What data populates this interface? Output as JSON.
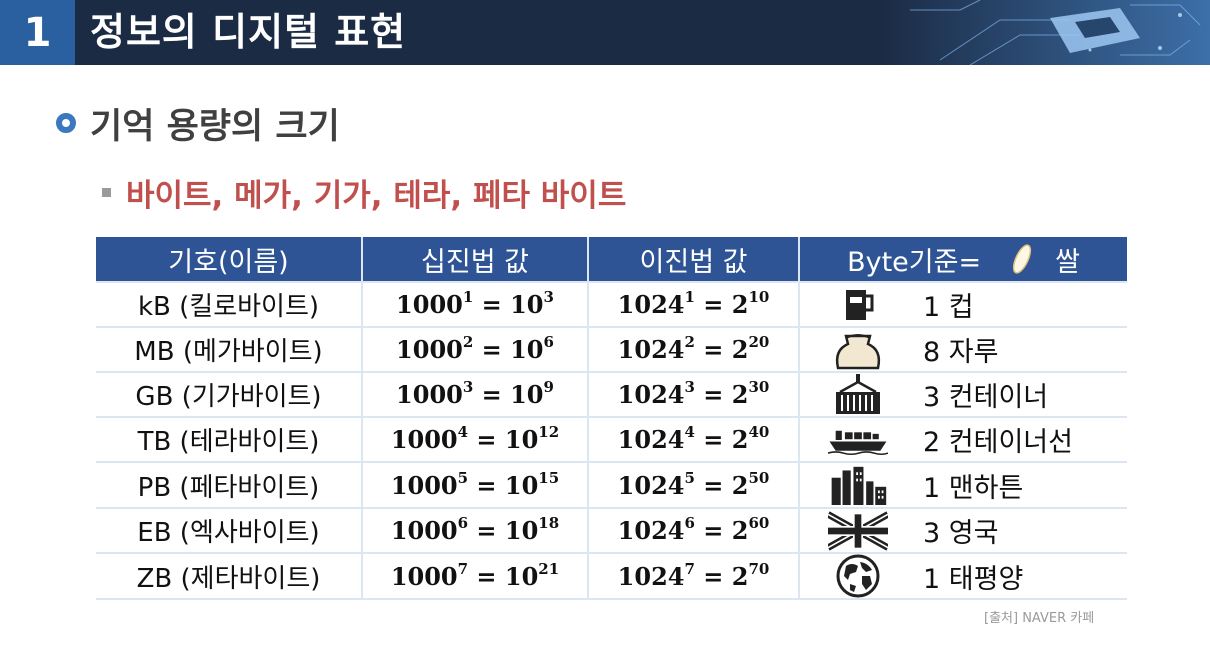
{
  "header": {
    "number": "1",
    "title": "정보의 디지털 표현"
  },
  "heading": "기억 용량의 크기",
  "subheading": "바이트, 메가, 기가, 테라, 페타 바이트",
  "table": {
    "headers": [
      "기호(이름)",
      "십진법 값",
      "이진법 값",
      "Byte기준=",
      "쌀"
    ],
    "rows": [
      {
        "name": "kB (킬로바이트)",
        "dec_base": "1000",
        "dec_exp": "1",
        "dec_res_base": "10",
        "dec_res_exp": "3",
        "bin_base": "1024",
        "bin_exp": "1",
        "bin_res_base": "2",
        "bin_res_exp": "10",
        "icon": "cup-icon",
        "example": "1 컵"
      },
      {
        "name": "MB (메가바이트)",
        "dec_base": "1000",
        "dec_exp": "2",
        "dec_res_base": "10",
        "dec_res_exp": "6",
        "bin_base": "1024",
        "bin_exp": "2",
        "bin_res_base": "2",
        "bin_res_exp": "20",
        "icon": "sack-icon",
        "example": "8 자루"
      },
      {
        "name": "GB (기가바이트)",
        "dec_base": "1000",
        "dec_exp": "3",
        "dec_res_base": "10",
        "dec_res_exp": "9",
        "bin_base": "1024",
        "bin_exp": "3",
        "bin_res_base": "2",
        "bin_res_exp": "30",
        "icon": "container-icon",
        "example": "3 컨테이너"
      },
      {
        "name": "TB (테라바이트)",
        "dec_base": "1000",
        "dec_exp": "4",
        "dec_res_base": "10",
        "dec_res_exp": "12",
        "bin_base": "1024",
        "bin_exp": "4",
        "bin_res_base": "2",
        "bin_res_exp": "40",
        "icon": "ship-icon",
        "example": "2 컨테이너선"
      },
      {
        "name": "PB (페타바이트)",
        "dec_base": "1000",
        "dec_exp": "5",
        "dec_res_base": "10",
        "dec_res_exp": "15",
        "bin_base": "1024",
        "bin_exp": "5",
        "bin_res_base": "2",
        "bin_res_exp": "50",
        "icon": "city-icon",
        "example": "1 맨하튼"
      },
      {
        "name": "EB (엑사바이트)",
        "dec_base": "1000",
        "dec_exp": "6",
        "dec_res_base": "10",
        "dec_res_exp": "18",
        "bin_base": "1024",
        "bin_exp": "6",
        "bin_res_base": "2",
        "bin_res_exp": "60",
        "icon": "uk-flag-icon",
        "example": "3 영국"
      },
      {
        "name": "ZB (제타바이트)",
        "dec_base": "1000",
        "dec_exp": "7",
        "dec_res_base": "10",
        "dec_res_exp": "21",
        "bin_base": "1024",
        "bin_exp": "7",
        "bin_res_base": "2",
        "bin_res_exp": "70",
        "icon": "globe-icon",
        "example": "1 태평양"
      }
    ]
  },
  "source": "[출처] NAVER 카페",
  "colors": {
    "header_bg": "#1b2b44",
    "number_bg": "#2a5fa0",
    "table_header": "#2f5496",
    "subheading": "#c0504d"
  }
}
